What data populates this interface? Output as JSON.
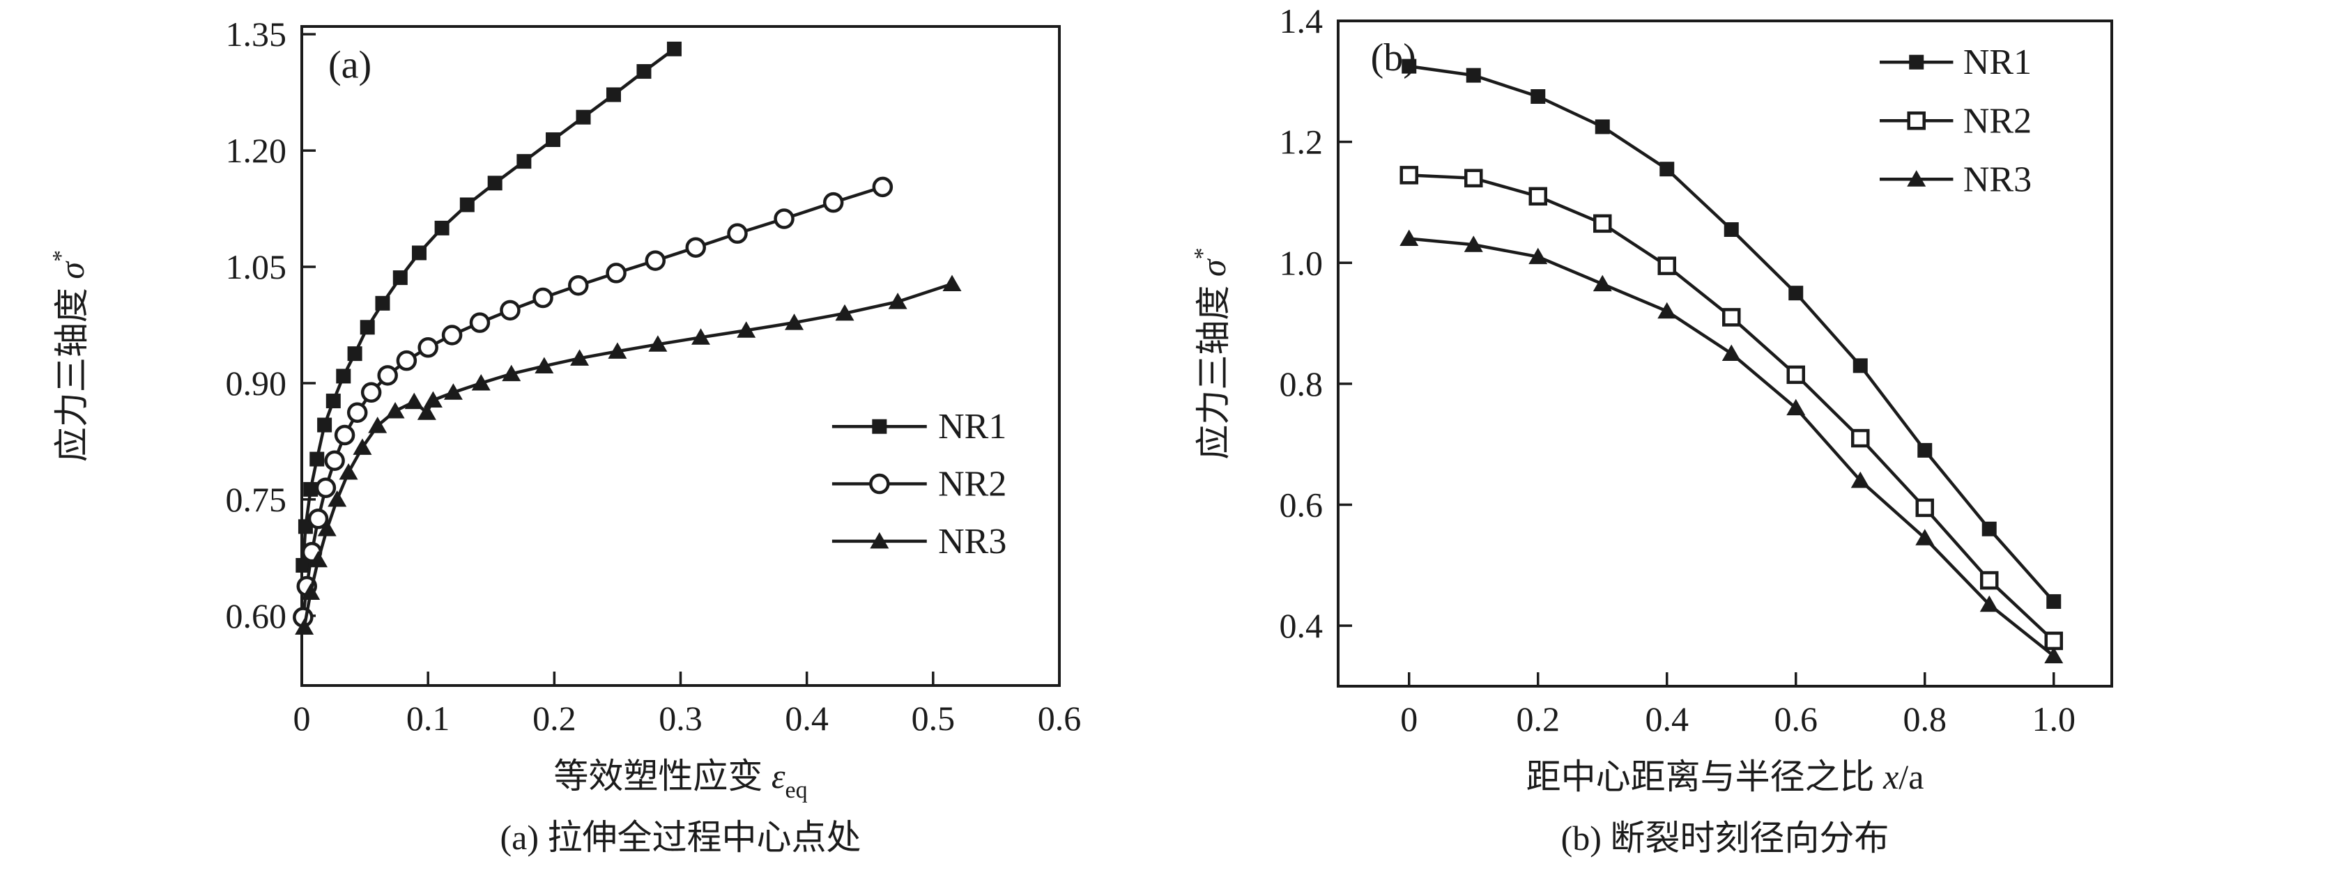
{
  "page": {
    "background": "#ffffff",
    "ink": "#1b1b1b"
  },
  "chart_data": [
    {
      "type": "line",
      "panel_label": "(a)",
      "caption": "(a) 拉伸全过程中心点处",
      "xlabel": {
        "prefix": "等效塑性应变 ",
        "symbol": "ε",
        "subscript": "eq"
      },
      "ylabel": {
        "prefix": "应力三轴度 ",
        "symbol": "σ",
        "superscript": "*"
      },
      "xlim": [
        0,
        0.6
      ],
      "ylim": [
        0.51,
        1.36
      ],
      "grid": false,
      "x_tick_values": [
        0,
        0.1,
        0.2,
        0.3,
        0.4,
        0.5,
        0.6
      ],
      "x_tick_labels": [
        "0",
        "0.1",
        "0.2",
        "0.3",
        "0.4",
        "0.5",
        "0.6"
      ],
      "y_tick_values": [
        1.35,
        1.2,
        1.05,
        0.9,
        0.75,
        0.6
      ],
      "y_tick_labels": [
        "1.35",
        "1.20",
        "1.05",
        "0.90",
        "0.75",
        "0.60"
      ],
      "legend": {
        "position": "center-right",
        "items": [
          "NR1",
          "NR2",
          "NR3"
        ]
      },
      "series": [
        {
          "name": "NR1",
          "marker": "filled-square",
          "x": [
            0.001,
            0.003,
            0.007,
            0.012,
            0.018,
            0.025,
            0.033,
            0.042,
            0.052,
            0.064,
            0.078,
            0.093,
            0.111,
            0.131,
            0.153,
            0.176,
            0.199,
            0.223,
            0.247,
            0.271,
            0.295
          ],
          "y": [
            0.665,
            0.715,
            0.763,
            0.802,
            0.846,
            0.877,
            0.909,
            0.938,
            0.972,
            1.003,
            1.036,
            1.068,
            1.1,
            1.13,
            1.158,
            1.186,
            1.214,
            1.243,
            1.272,
            1.302,
            1.331
          ]
        },
        {
          "name": "NR2",
          "marker": "open-circle",
          "x": [
            0.001,
            0.004,
            0.008,
            0.013,
            0.019,
            0.026,
            0.034,
            0.044,
            0.055,
            0.068,
            0.083,
            0.1,
            0.119,
            0.141,
            0.165,
            0.191,
            0.219,
            0.249,
            0.28,
            0.312,
            0.345,
            0.382,
            0.421,
            0.46
          ],
          "y": [
            0.598,
            0.638,
            0.682,
            0.725,
            0.765,
            0.8,
            0.833,
            0.862,
            0.888,
            0.91,
            0.929,
            0.946,
            0.962,
            0.978,
            0.994,
            1.01,
            1.026,
            1.042,
            1.058,
            1.075,
            1.093,
            1.112,
            1.133,
            1.153
          ]
        },
        {
          "name": "NR3",
          "marker": "filled-triangle",
          "x": [
            0.002,
            0.007,
            0.013,
            0.02,
            0.028,
            0.037,
            0.048,
            0.06,
            0.074,
            0.089,
            0.099,
            0.104,
            0.12,
            0.142,
            0.166,
            0.192,
            0.22,
            0.25,
            0.282,
            0.316,
            0.352,
            0.39,
            0.43,
            0.472,
            0.515
          ],
          "y": [
            0.585,
            0.63,
            0.672,
            0.712,
            0.75,
            0.785,
            0.817,
            0.845,
            0.864,
            0.876,
            0.862,
            0.878,
            0.888,
            0.9,
            0.912,
            0.922,
            0.932,
            0.941,
            0.95,
            0.959,
            0.968,
            0.978,
            0.99,
            1.005,
            1.028
          ]
        }
      ]
    },
    {
      "type": "line",
      "panel_label": "(b)",
      "caption": "(b) 断裂时刻径向分布",
      "xlabel": {
        "prefix": "距中心距离与半径之比 ",
        "symbol": "x",
        "suffix": "/a"
      },
      "ylabel": {
        "prefix": "应力三轴度 ",
        "symbol": "σ",
        "superscript": "*"
      },
      "xlim": [
        -0.11,
        1.09
      ],
      "ylim": [
        0.3,
        1.4
      ],
      "grid": false,
      "x_tick_values": [
        0,
        0.2,
        0.4,
        0.6,
        0.8,
        1.0
      ],
      "x_tick_labels": [
        "0",
        "0.2",
        "0.4",
        "0.6",
        "0.8",
        "1.0"
      ],
      "y_tick_values": [
        1.4,
        1.2,
        1.0,
        0.8,
        0.6,
        0.4
      ],
      "y_tick_labels": [
        "1.4",
        "1.2",
        "1.0",
        "0.8",
        "0.6",
        "0.4"
      ],
      "legend": {
        "position": "top-right",
        "items": [
          "NR1",
          "NR2",
          "NR3"
        ]
      },
      "series": [
        {
          "name": "NR1",
          "marker": "filled-square",
          "x": [
            0,
            0.1,
            0.2,
            0.3,
            0.4,
            0.5,
            0.6,
            0.7,
            0.8,
            0.9,
            1.0
          ],
          "y": [
            1.325,
            1.31,
            1.275,
            1.225,
            1.155,
            1.055,
            0.95,
            0.83,
            0.69,
            0.56,
            0.44
          ]
        },
        {
          "name": "NR2",
          "marker": "open-square",
          "x": [
            0,
            0.1,
            0.2,
            0.3,
            0.4,
            0.5,
            0.6,
            0.7,
            0.8,
            0.9,
            1.0
          ],
          "y": [
            1.145,
            1.14,
            1.11,
            1.065,
            0.995,
            0.91,
            0.815,
            0.71,
            0.595,
            0.475,
            0.375
          ]
        },
        {
          "name": "NR3",
          "marker": "filled-triangle",
          "x": [
            0,
            0.1,
            0.2,
            0.3,
            0.4,
            0.5,
            0.6,
            0.7,
            0.8,
            0.9,
            1.0
          ],
          "y": [
            1.04,
            1.03,
            1.01,
            0.965,
            0.92,
            0.85,
            0.76,
            0.64,
            0.545,
            0.435,
            0.35
          ]
        }
      ]
    }
  ]
}
